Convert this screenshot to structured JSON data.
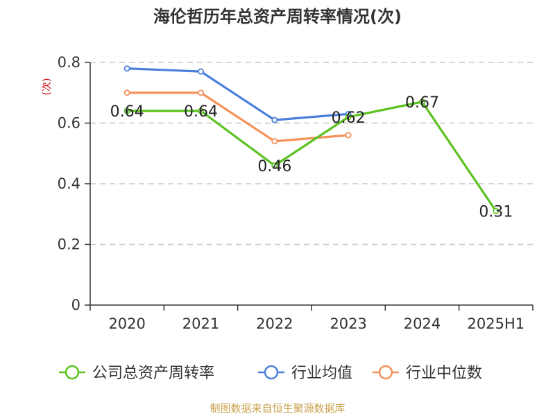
{
  "chart_data": {
    "type": "line",
    "title": "海伦哲历年总资产周转率情况(次)",
    "ylabel": "(次)",
    "xlabel": "",
    "categories": [
      "2020",
      "2021",
      "2022",
      "2023",
      "2024",
      "2025H1"
    ],
    "ylim": [
      0,
      0.8
    ],
    "yticks": [
      0,
      0.2,
      0.4,
      0.6,
      0.8
    ],
    "ytick_labels": [
      "0",
      "0.2",
      "0.4",
      "0.6",
      "0.8"
    ],
    "grid": true,
    "legend_position": "bottom",
    "series": [
      {
        "name": "公司总资产周转率",
        "color": "#5ac21f",
        "values": [
          0.64,
          0.64,
          0.46,
          0.62,
          0.67,
          0.31
        ],
        "labels": [
          "0.64",
          "0.64",
          "0.46",
          "0.62",
          "0.67",
          "0.31"
        ]
      },
      {
        "name": "行业均值",
        "color": "#4a7fdc",
        "values": [
          0.78,
          0.77,
          0.61,
          0.63,
          null,
          null
        ],
        "labels": []
      },
      {
        "name": "行业中位数",
        "color": "#f5915a",
        "values": [
          0.7,
          0.7,
          0.54,
          0.56,
          null,
          null
        ],
        "labels": []
      }
    ]
  },
  "source": "制图数据来自恒生聚源数据库"
}
